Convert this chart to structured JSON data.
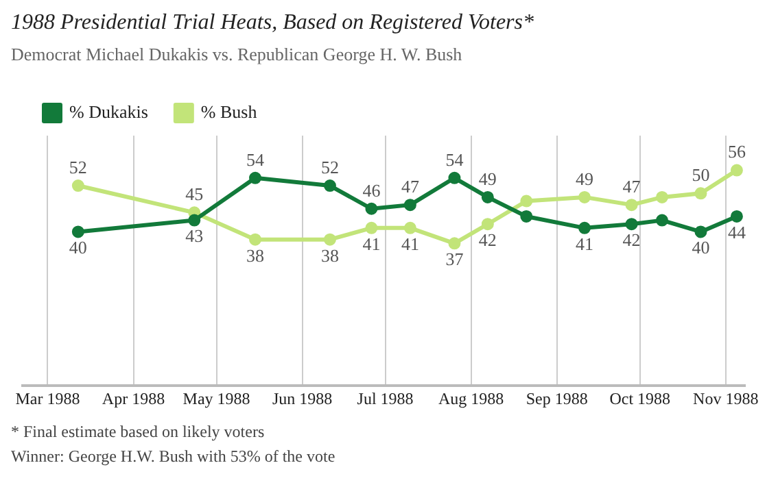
{
  "chart_data": {
    "type": "line",
    "title": "1988 Presidential Trial Heats, Based on Registered Voters*",
    "subtitle": "Democrat Michael Dukakis vs. Republican George H. W. Bush",
    "x": [
      "1988-03-12",
      "1988-04-23",
      "1988-05-15",
      "1988-06-11",
      "1988-06-26",
      "1988-07-10",
      "1988-07-26",
      "1988-08-07",
      "1988-08-21",
      "1988-09-11",
      "1988-09-28",
      "1988-10-09",
      "1988-10-23",
      "1988-11-05"
    ],
    "series": [
      {
        "name": "% Dukakis",
        "color": "#127a3a",
        "values": [
          40,
          43,
          54,
          52,
          46,
          47,
          54,
          49,
          44,
          41,
          42,
          43,
          40,
          44
        ],
        "value_labels": [
          "40",
          "43",
          "54",
          "52",
          "46",
          "47",
          "54",
          "49",
          null,
          "41",
          "42",
          null,
          "40",
          "44"
        ]
      },
      {
        "name": "% Bush",
        "color": "#c2e479",
        "values": [
          52,
          45,
          38,
          38,
          41,
          41,
          37,
          42,
          48,
          49,
          47,
          49,
          50,
          56
        ],
        "value_labels": [
          "52",
          "45",
          "38",
          "38",
          "41",
          "41",
          "37",
          "42",
          null,
          "49",
          "47",
          null,
          "50",
          "56"
        ]
      }
    ],
    "xlim": [
      "1988-02-21",
      "1988-11-08"
    ],
    "xticks": [
      {
        "value": "1988-03-01",
        "label": "Mar 1988"
      },
      {
        "value": "1988-04-01",
        "label": "Apr 1988"
      },
      {
        "value": "1988-05-01",
        "label": "May 1988"
      },
      {
        "value": "1988-06-01",
        "label": "Jun 1988"
      },
      {
        "value": "1988-07-01",
        "label": "Jul 1988"
      },
      {
        "value": "1988-08-01",
        "label": "Aug 1988"
      },
      {
        "value": "1988-09-01",
        "label": "Sep 1988"
      },
      {
        "value": "1988-10-01",
        "label": "Oct 1988"
      },
      {
        "value": "1988-11-01",
        "label": "Nov 1988"
      }
    ],
    "ylim": [
      0,
      65
    ],
    "tick_labels": "x",
    "grid": "x",
    "legend": "top left",
    "marker": "circle",
    "line_style": "solid",
    "annotations": [
      "* Final estimate based on likely voters",
      "Winner: George H.W. Bush with 53% of the vote"
    ]
  }
}
